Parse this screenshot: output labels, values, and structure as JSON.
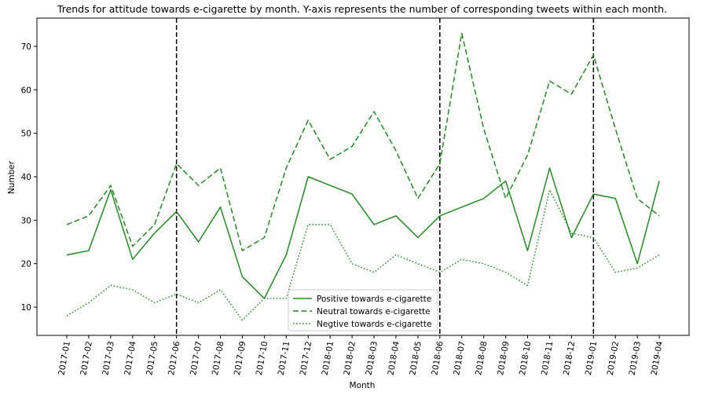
{
  "chart_data": {
    "type": "line",
    "title": "Trends for attitude towards e-cigarette by month. Y-axis represents the number of corresponding tweets within each month.",
    "xlabel": "Month",
    "ylabel": "Number",
    "categories": [
      "2017-01",
      "2017-02",
      "2017-03",
      "2017-04",
      "2017-05",
      "2017-06",
      "2017-07",
      "2017-08",
      "2017-09",
      "2017-10",
      "2017-11",
      "2017-12",
      "2018-01",
      "2018-02",
      "2018-03",
      "2018-04",
      "2018-05",
      "2018-06",
      "2018-07",
      "2018-08",
      "2018-09",
      "2018-10",
      "2018-11",
      "2018-12",
      "2019-01",
      "2019-02",
      "2019-03",
      "2019-04"
    ],
    "ylim": [
      3.5,
      76.5
    ],
    "yticks": [
      10,
      20,
      30,
      40,
      50,
      60,
      70
    ],
    "series": [
      {
        "name": "Positive towards e-cigarette",
        "style": "solid",
        "values": [
          22,
          23,
          37,
          21,
          27,
          32,
          25,
          33,
          17,
          12,
          22,
          40,
          38,
          36,
          29,
          31,
          26,
          31,
          33,
          35,
          39,
          23,
          42,
          26,
          36,
          35,
          20,
          39
        ]
      },
      {
        "name": "Neutral towards e-cigarette",
        "style": "dashed",
        "values": [
          29,
          31,
          38,
          24,
          29,
          43,
          38,
          42,
          23,
          26,
          42,
          53,
          44,
          47,
          55,
          46,
          35,
          43,
          73,
          51,
          35,
          45,
          62,
          59,
          68,
          51,
          35,
          31
        ]
      },
      {
        "name": "Negtive towards e-cigarette",
        "style": "dotted",
        "values": [
          8,
          11,
          15,
          14,
          11,
          13,
          11,
          14,
          7,
          12,
          12,
          29,
          29,
          20,
          18,
          22,
          20,
          18,
          21,
          20,
          18,
          15,
          37,
          27,
          26,
          18,
          19,
          22
        ]
      }
    ],
    "vlines": [
      "2017-06",
      "2018-06",
      "2019-01"
    ],
    "series_color": "#228b22",
    "vline_color": "#000000",
    "grid": false,
    "legend": "lower-center"
  }
}
